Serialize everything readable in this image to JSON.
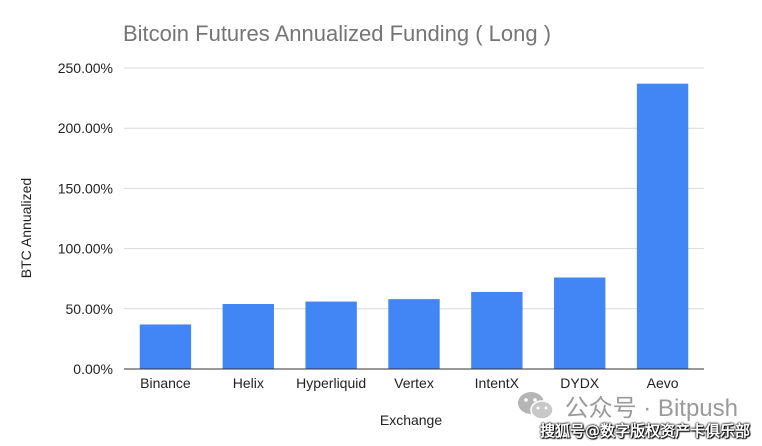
{
  "chart_data": {
    "type": "bar",
    "title": "Bitcoin Futures Annualized Funding ( Long )",
    "xlabel": "Exchange",
    "ylabel": "BTC Annualized",
    "categories": [
      "Binance",
      "Helix",
      "Hyperliquid",
      "Vertex",
      "IntentX",
      "DYDX",
      "Aevo"
    ],
    "values": [
      37,
      54,
      56,
      58,
      64,
      76,
      237
    ],
    "ylim": [
      0,
      250
    ],
    "yticks": [
      0,
      50,
      100,
      150,
      200,
      250
    ],
    "ytick_labels": [
      "0.00%",
      "50.00%",
      "100.00%",
      "150.00%",
      "200.00%",
      "250.00%"
    ],
    "grid": true,
    "legend": "none",
    "colors": {
      "bar": "#4285F4",
      "title": "#757575",
      "grid": "#d9d9d9"
    }
  },
  "watermark": {
    "text": "公众号 · Bitpush",
    "icon": "wechat-icon"
  },
  "credit": "搜狐号@数字版权资产卡俱乐部"
}
